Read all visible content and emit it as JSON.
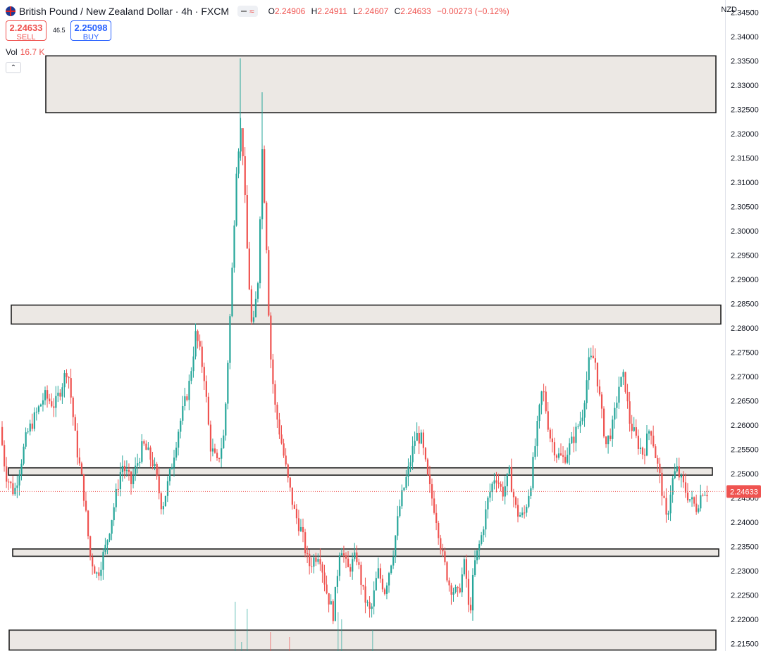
{
  "header": {
    "symbol": "British Pound / New Zealand Dollar · 4h · FXCM",
    "open_label": "O",
    "open": "2.24906",
    "high_label": "H",
    "high": "2.24911",
    "low_label": "L",
    "low": "2.24607",
    "close_label": "C",
    "close": "2.24633",
    "change": "−0.00273 (−0.12%)"
  },
  "trade": {
    "sell_price": "2.24633",
    "sell_label": "SELL",
    "buy_price": "2.25098",
    "buy_label": "BUY",
    "spread": "46.5"
  },
  "volume": {
    "label": "Vol",
    "value": "16.7 K"
  },
  "currency": "NZD",
  "colors": {
    "up": "#26a69a",
    "down": "#ef5350",
    "zone_fill": "#ece8e4",
    "zone_border": "#1f1f1f",
    "price_tag": "#ef5350"
  },
  "chart_data": {
    "type": "candlestick",
    "y_ticks": [
      "2.34500",
      "2.34000",
      "2.33500",
      "2.33000",
      "2.32500",
      "2.32000",
      "2.31500",
      "2.31000",
      "2.30500",
      "2.30000",
      "2.29500",
      "2.29000",
      "2.28500",
      "2.28000",
      "2.27500",
      "2.27000",
      "2.26500",
      "2.26000",
      "2.25500",
      "2.25000",
      "2.24500",
      "2.24000",
      "2.23500",
      "2.23000",
      "2.22500",
      "2.22000",
      "2.21500"
    ],
    "ylim": [
      2.2135,
      2.3475
    ],
    "last_price": "2.24633",
    "zones": [
      {
        "name": "zone-1",
        "x0": 0.0,
        "x1": 0.948,
        "y_high": 2.336,
        "y_low": 2.3243
      },
      {
        "name": "zone-2",
        "x0": 0.0,
        "x1": 1.0,
        "y_high": 2.2847,
        "y_low": 2.2808
      },
      {
        "name": "zone-3",
        "x0": 0.0,
        "x1": 0.985,
        "y_high": 2.2512,
        "y_low": 2.2497
      },
      {
        "name": "zone-4",
        "x0": 0.0,
        "x1": 0.995,
        "y_high": 2.2345,
        "y_low": 2.233
      },
      {
        "name": "zone-5",
        "x0": 0.0,
        "x1": 0.992,
        "y_high": 2.2178,
        "y_low": 2.2137
      }
    ],
    "path": [
      [
        0,
        2.262
      ],
      [
        10,
        2.25
      ],
      [
        22,
        2.246
      ],
      [
        40,
        2.258
      ],
      [
        65,
        2.266
      ],
      [
        80,
        2.264
      ],
      [
        98,
        2.272
      ],
      [
        110,
        2.256
      ],
      [
        120,
        2.247
      ],
      [
        130,
        2.233
      ],
      [
        140,
        2.229
      ],
      [
        152,
        2.235
      ],
      [
        162,
        2.242
      ],
      [
        175,
        2.252
      ],
      [
        188,
        2.248
      ],
      [
        205,
        2.256
      ],
      [
        220,
        2.252
      ],
      [
        232,
        2.243
      ],
      [
        242,
        2.249
      ],
      [
        255,
        2.259
      ],
      [
        270,
        2.268
      ],
      [
        280,
        2.279
      ],
      [
        292,
        2.27
      ],
      [
        300,
        2.256
      ],
      [
        310,
        2.252
      ],
      [
        320,
        2.258
      ],
      [
        330,
        2.287
      ],
      [
        338,
        2.315
      ],
      [
        345,
        2.322
      ],
      [
        352,
        2.298
      ],
      [
        360,
        2.278
      ],
      [
        368,
        2.29
      ],
      [
        374,
        2.317
      ],
      [
        380,
        2.298
      ],
      [
        385,
        2.276
      ],
      [
        392,
        2.264
      ],
      [
        402,
        2.256
      ],
      [
        410,
        2.249
      ],
      [
        420,
        2.242
      ],
      [
        430,
        2.238
      ],
      [
        440,
        2.231
      ],
      [
        455,
        2.234
      ],
      [
        465,
        2.226
      ],
      [
        475,
        2.221
      ],
      [
        485,
        2.236
      ],
      [
        495,
        2.23
      ],
      [
        508,
        2.233
      ],
      [
        518,
        2.225
      ],
      [
        528,
        2.221
      ],
      [
        538,
        2.23
      ],
      [
        548,
        2.226
      ],
      [
        560,
        2.234
      ],
      [
        570,
        2.244
      ],
      [
        582,
        2.251
      ],
      [
        592,
        2.258
      ],
      [
        600,
        2.257
      ],
      [
        610,
        2.248
      ],
      [
        620,
        2.242
      ],
      [
        630,
        2.233
      ],
      [
        640,
        2.227
      ],
      [
        652,
        2.225
      ],
      [
        662,
        2.232
      ],
      [
        668,
        2.22
      ],
      [
        675,
        2.231
      ],
      [
        685,
        2.237
      ],
      [
        695,
        2.245
      ],
      [
        705,
        2.25
      ],
      [
        715,
        2.246
      ],
      [
        725,
        2.25
      ],
      [
        735,
        2.242
      ],
      [
        745,
        2.241
      ],
      [
        755,
        2.248
      ],
      [
        765,
        2.26
      ],
      [
        772,
        2.268
      ],
      [
        782,
        2.258
      ],
      [
        792,
        2.254
      ],
      [
        802,
        2.253
      ],
      [
        815,
        2.257
      ],
      [
        828,
        2.262
      ],
      [
        838,
        2.273
      ],
      [
        846,
        2.274
      ],
      [
        855,
        2.263
      ],
      [
        862,
        2.256
      ],
      [
        872,
        2.26
      ],
      [
        880,
        2.268
      ],
      [
        888,
        2.27
      ],
      [
        895,
        2.261
      ],
      [
        905,
        2.257
      ],
      [
        915,
        2.254
      ],
      [
        925,
        2.26
      ],
      [
        932,
        2.254
      ],
      [
        940,
        2.248
      ],
      [
        948,
        2.24
      ],
      [
        955,
        2.248
      ],
      [
        962,
        2.251
      ],
      [
        970,
        2.248
      ],
      [
        980,
        2.245
      ],
      [
        990,
        2.243
      ],
      [
        1000,
        2.247
      ],
      [
        1004,
        2.2463
      ]
    ]
  }
}
